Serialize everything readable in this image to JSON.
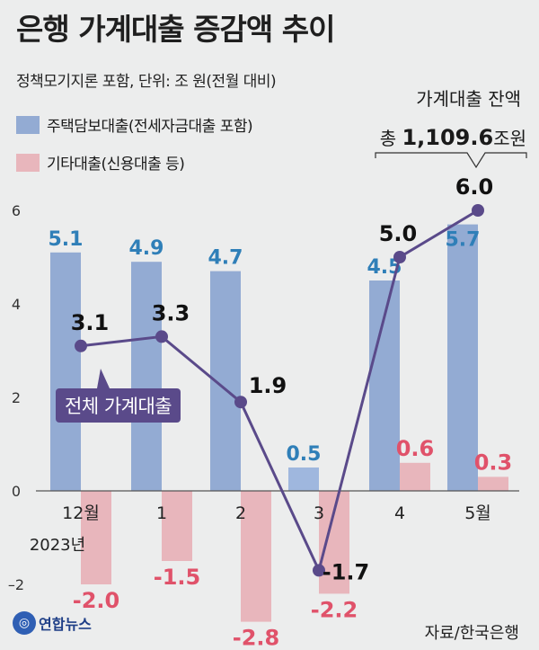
{
  "title": "은행 가계대출 증감액 추이",
  "subtitle": "정책모기지론 포함, 단위: 조 원(전월 대비)",
  "legend": {
    "mortgage": "주택담보대출(전세자금대출 포함)",
    "other": "기타대출(신용대출 등)"
  },
  "balance": {
    "title": "가계대출 잔액",
    "prefix": "총 ",
    "value": "1,109.6",
    "unit": "조원"
  },
  "callout": "전체 가계대출",
  "source": "자료/한국은행",
  "logo": "연합뉴스",
  "year_label": "2023년",
  "colors": {
    "mortgage_bar": "#93abd3",
    "mortgage_bar_highlight": "#9fb7de",
    "other_bar": "#e8b6bc",
    "total_line": "#5a4a8a",
    "mortgage_label": "#2f7fb8",
    "other_label": "#e0526a"
  },
  "chart_data": {
    "type": "bar",
    "categories": [
      "12월",
      "1",
      "2",
      "3",
      "4",
      "5월"
    ],
    "series": [
      {
        "name": "주택담보대출(전세자금대출 포함)",
        "values": [
          5.1,
          4.9,
          4.7,
          0.5,
          4.5,
          5.7
        ]
      },
      {
        "name": "기타대출(신용대출 등)",
        "values": [
          -2.0,
          -1.5,
          -2.8,
          -2.2,
          0.6,
          0.3
        ]
      },
      {
        "name": "전체 가계대출",
        "type": "line",
        "values": [
          3.1,
          3.3,
          1.9,
          -1.7,
          5.0,
          6.0
        ]
      }
    ],
    "yticks": [
      -2,
      0,
      2,
      4,
      6
    ],
    "ylim": [
      -3.2,
      6.6
    ]
  }
}
